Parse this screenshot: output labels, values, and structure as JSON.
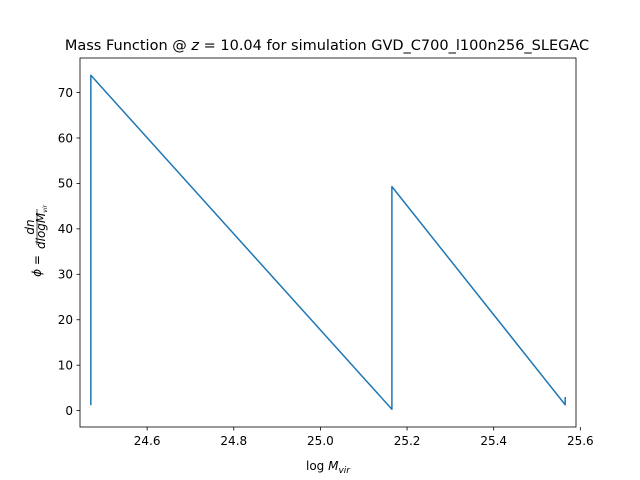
{
  "chart_data": {
    "type": "line",
    "title": "Mass Function @ z = 10.04 for simulation GVD_C700_l100n256_SLEGAC",
    "title_parts": {
      "prefix": "Mass Function @ ",
      "z_symbol": "z",
      "z_rest": " = 10.04 for simulation GVD_C700_l100n256_SLEGAC"
    },
    "xlabel": "log M_vir",
    "xlabel_parts": {
      "log": "log",
      "M": "M",
      "sub": "vir"
    },
    "ylabel": "φ = dn / dlog M_vir",
    "ylabel_parts": {
      "phi": "ϕ",
      "eq": "=",
      "num": "dn",
      "den_log": "dlog",
      "den_M": "M",
      "den_sub": "vir"
    },
    "xlim": [
      24.445,
      25.59
    ],
    "ylim": [
      -3.6,
      77.6
    ],
    "xticks": [
      24.6,
      24.8,
      25.0,
      25.2,
      25.4,
      25.6
    ],
    "xtick_labels": [
      "24.6",
      "24.8",
      "25.0",
      "25.2",
      "25.4",
      "25.6"
    ],
    "yticks": [
      0,
      10,
      20,
      30,
      40,
      50,
      60,
      70
    ],
    "ytick_labels": [
      "0",
      "10",
      "20",
      "30",
      "40",
      "50",
      "60",
      "70"
    ],
    "grid": false,
    "series": [
      {
        "color": "#1f77b4",
        "x": [
          24.47,
          24.47,
          25.165,
          25.165,
          25.565,
          25.565
        ],
        "y": [
          1.2,
          73.8,
          0.3,
          49.3,
          1.3,
          3.0
        ]
      }
    ]
  }
}
